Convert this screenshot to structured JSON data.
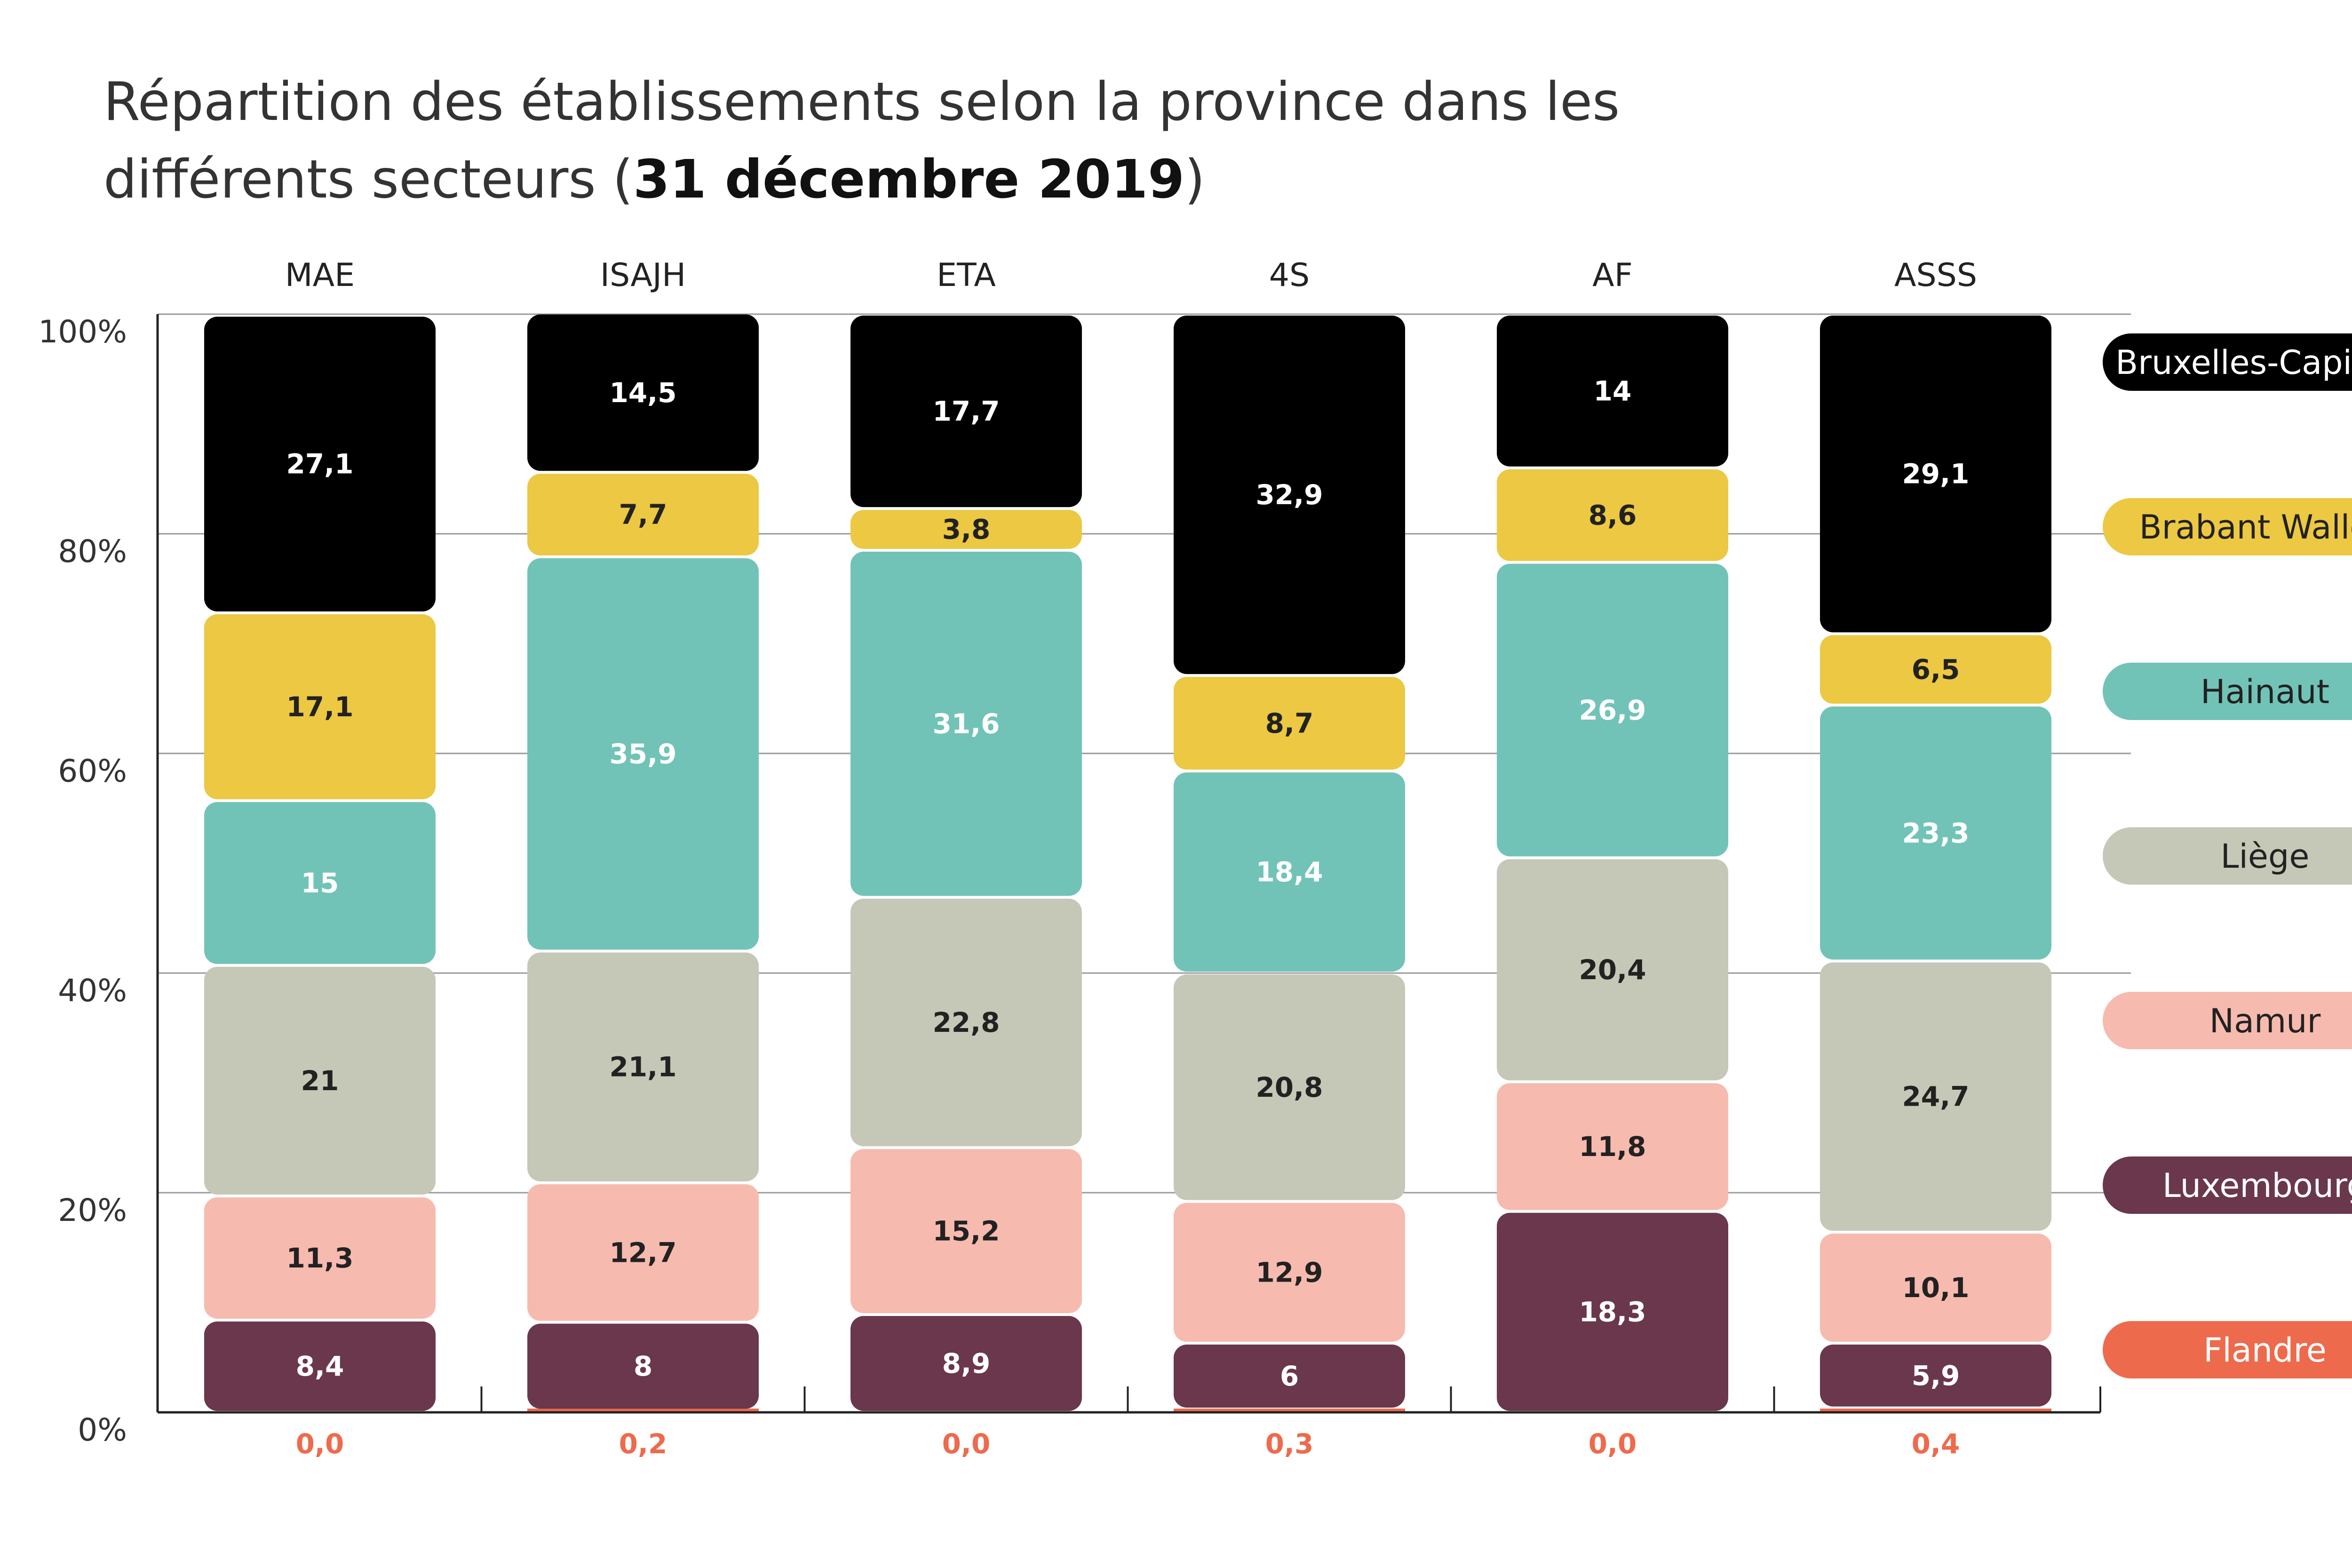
{
  "title": {
    "line1": "Répartition des établissements selon la province dans les",
    "line2_prefix": "différents secteurs (",
    "line2_bold": "31 décembre 2019",
    "line2_suffix": ")"
  },
  "chart_data": {
    "type": "bar",
    "stacked": true,
    "title": "Répartition des établissements selon la province dans les différents secteurs (31 décembre 2019)",
    "categories": [
      "MAE",
      "ISAJH",
      "ETA",
      "4S",
      "AF",
      "ASSS"
    ],
    "y_ticks": [
      "0%",
      "20%",
      "40%",
      "60%",
      "80%",
      "100%"
    ],
    "ylim": [
      0,
      100
    ],
    "grid": true,
    "legend_position": "right",
    "series": [
      {
        "name": "Flandre",
        "color": "#EE6A4D",
        "text_color": "#EE6A4D",
        "labels": [
          "0,0",
          "0,2",
          "0,0",
          "0,3",
          "0,0",
          "0,4"
        ],
        "values": [
          0.0,
          0.2,
          0.0,
          0.3,
          0.0,
          0.4
        ]
      },
      {
        "name": "Luxembourg",
        "color": "#6A374C",
        "text_color": "#FFFFFF",
        "labels": [
          "8,4",
          "8",
          "8,9",
          "6",
          "18,3",
          "5,9"
        ],
        "values": [
          8.4,
          8,
          8.9,
          6,
          18.3,
          5.9
        ]
      },
      {
        "name": "Namur",
        "color": "#F7BAAF",
        "text_color": "#222222",
        "labels": [
          "11,3",
          "12,7",
          "15,2",
          "12,9",
          "11,8",
          "10,1"
        ],
        "values": [
          11.3,
          12.7,
          15.2,
          12.9,
          11.8,
          10.1
        ]
      },
      {
        "name": "Liège",
        "color": "#C5C8B6",
        "text_color": "#222222",
        "labels": [
          "21",
          "21,1",
          "22,8",
          "20,8",
          "20,4",
          "24,7"
        ],
        "values": [
          21,
          21.1,
          22.8,
          20.8,
          20.4,
          24.7
        ]
      },
      {
        "name": "Hainaut",
        "color": "#72C3B7",
        "text_color": "#FFFFFF",
        "labels": [
          "15",
          "35,9",
          "31,6",
          "18,4",
          "26,9",
          "23,3"
        ],
        "values": [
          15,
          35.9,
          31.6,
          18.4,
          26.9,
          23.3
        ]
      },
      {
        "name": "Brabant Wallon",
        "color": "#ECC843",
        "text_color": "#222222",
        "labels": [
          "17,1",
          "7,7",
          "3,8",
          "8,7",
          "8,6",
          "6,5"
        ],
        "values": [
          17.1,
          7.7,
          3.8,
          8.7,
          8.6,
          6.5
        ]
      },
      {
        "name": "Bruxelles-Capitale",
        "color": "#000000",
        "text_color": "#FFFFFF",
        "labels": [
          "27,1",
          "14,5",
          "17,7",
          "32,9",
          "14",
          "29,1"
        ],
        "values": [
          27.1,
          14.5,
          17.7,
          32.9,
          14,
          29.1
        ]
      }
    ],
    "legend": [
      {
        "name": "Bruxelles-Capitale",
        "color": "#000000",
        "text_color": "#FFFFFF"
      },
      {
        "name": "Brabant Wallon",
        "color": "#ECC843",
        "text_color": "#222222"
      },
      {
        "name": "Hainaut",
        "color": "#72C3B7",
        "text_color": "#222222"
      },
      {
        "name": "Liège",
        "color": "#C5C8B6",
        "text_color": "#222222"
      },
      {
        "name": "Namur",
        "color": "#F7BAAF",
        "text_color": "#222222"
      },
      {
        "name": "Luxembourg",
        "color": "#6A374C",
        "text_color": "#FFFFFF"
      },
      {
        "name": "Flandre",
        "color": "#EE6A4D",
        "text_color": "#FFFFFF"
      }
    ]
  }
}
